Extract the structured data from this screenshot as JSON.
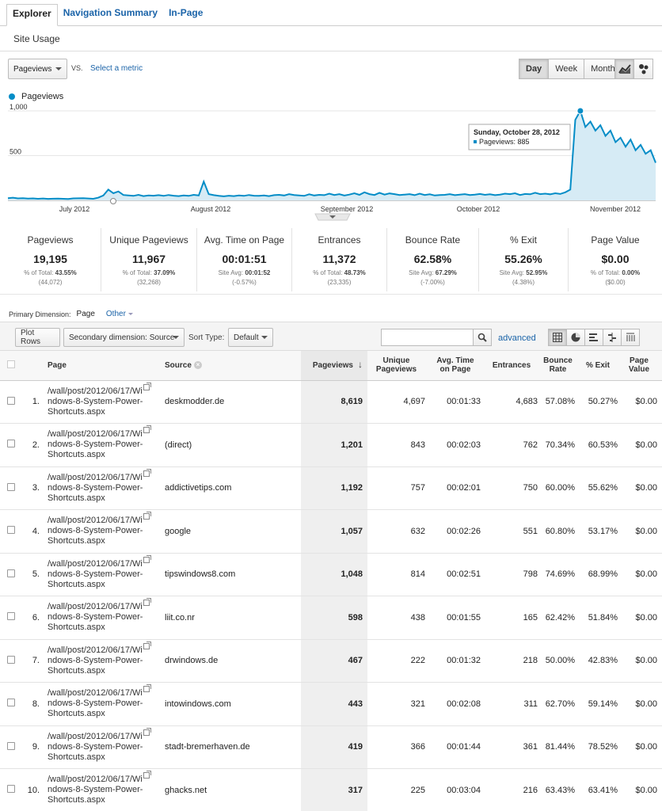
{
  "tabs": [
    {
      "label": "Explorer",
      "active": true
    },
    {
      "label": "Navigation Summary",
      "active": false
    },
    {
      "label": "In-Page",
      "active": false
    }
  ],
  "subtab": "Site Usage",
  "metric_select": {
    "value": "Pageviews",
    "vs_label": "VS.",
    "select_metric": "Select a metric"
  },
  "date_buttons": [
    {
      "label": "Day",
      "active": true
    },
    {
      "label": "Week",
      "active": false
    },
    {
      "label": "Month",
      "active": false
    }
  ],
  "chart_type_icons": [
    "line-chart-icon",
    "motion-chart-icon"
  ],
  "legend": {
    "label": "Pageviews",
    "color": "#058dc7"
  },
  "chart_data": {
    "type": "area",
    "series": [
      {
        "name": "Pageviews",
        "values": [
          25,
          30,
          22,
          24,
          20,
          22,
          18,
          21,
          17,
          19,
          20,
          18,
          16,
          22,
          23,
          25,
          21,
          18,
          30,
          55,
          120,
          80,
          100,
          60,
          55,
          50,
          62,
          48,
          55,
          52,
          58,
          50,
          60,
          52,
          48,
          55,
          50,
          62,
          55,
          210,
          70,
          58,
          50,
          45,
          52,
          48,
          55,
          50,
          60,
          52,
          50,
          55,
          48,
          58,
          62,
          55,
          70,
          60,
          55,
          50,
          68,
          55,
          62,
          58,
          75,
          60,
          70,
          55,
          65,
          80,
          62,
          90,
          70,
          60,
          85,
          65,
          78,
          70,
          60,
          65,
          70,
          58,
          75,
          60,
          68,
          55,
          60,
          62,
          70,
          58,
          64,
          70,
          60,
          65,
          72,
          62,
          68,
          58,
          65,
          75,
          70,
          80,
          60,
          72,
          68,
          85,
          70,
          75,
          68,
          80,
          72,
          90,
          120,
          900,
          1000,
          820,
          880,
          780,
          840,
          720,
          780,
          650,
          700,
          600,
          680,
          560,
          620,
          520,
          560,
          420
        ]
      }
    ],
    "x_ticks": [
      "July 2012",
      "August 2012",
      "September 2012",
      "October 2012",
      "November 2012"
    ],
    "y_ticks": [
      "1,000",
      "500"
    ],
    "ylim": [
      0,
      1000
    ],
    "tooltip": {
      "title": "Sunday, October 28, 2012",
      "text": "Pageviews: 885"
    },
    "color": "#058dc7",
    "fill": "#d6ebf5"
  },
  "scorecards": [
    {
      "label": "Pageviews",
      "value": "19,195",
      "sub_prefix": "% of Total:",
      "sub_value": "43.55%",
      "sub2": "(44,072)"
    },
    {
      "label": "Unique Pageviews",
      "value": "11,967",
      "sub_prefix": "% of Total:",
      "sub_value": "37.09%",
      "sub2": "(32,268)"
    },
    {
      "label": "Avg. Time on Page",
      "value": "00:01:51",
      "sub_prefix": "Site Avg:",
      "sub_value": "00:01:52",
      "sub2": "(-0.57%)"
    },
    {
      "label": "Entrances",
      "value": "11,372",
      "sub_prefix": "% of Total:",
      "sub_value": "48.73%",
      "sub2": "(23,335)"
    },
    {
      "label": "Bounce Rate",
      "value": "62.58%",
      "sub_prefix": "Site Avg:",
      "sub_value": "67.29%",
      "sub2": "(-7.00%)"
    },
    {
      "label": "% Exit",
      "value": "55.26%",
      "sub_prefix": "Site Avg:",
      "sub_value": "52.95%",
      "sub2": "(4.38%)"
    },
    {
      "label": "Page Value",
      "value": "$0.00",
      "sub_prefix": "% of Total:",
      "sub_value": "0.00%",
      "sub2": "($0.00)"
    }
  ],
  "primary_dimension": {
    "label": "Primary Dimension:",
    "value": "Page",
    "other": "Other"
  },
  "toolbar": {
    "plot_rows": "Plot Rows",
    "secondary_dimension": "Secondary dimension: Source",
    "sort_type_label": "Sort Type:",
    "sort_type_value": "Default",
    "advanced": "advanced"
  },
  "table": {
    "headers": {
      "page": "Page",
      "source": "Source",
      "pageviews": "Pageviews",
      "unique_pageviews_1": "Unique",
      "unique_pageviews_2": "Pageviews",
      "avg_time_1": "Avg. Time",
      "avg_time_2": "on Page",
      "entrances": "Entrances",
      "bounce_1": "Bounce",
      "bounce_2": "Rate",
      "exit": "% Exit",
      "value_1": "Page",
      "value_2": "Value"
    },
    "page_lines": [
      "/wall/post/2012/06/17/Wi",
      "ndows-8-System-Power-",
      "Shortcuts.aspx"
    ],
    "rows": [
      {
        "idx": "1.",
        "source": "deskmodder.de",
        "pv": "8,619",
        "upv": "4,697",
        "avg": "00:01:33",
        "ent": "4,683",
        "br": "57.08%",
        "exit": "50.27%",
        "val": "$0.00"
      },
      {
        "idx": "2.",
        "source": "(direct)",
        "pv": "1,201",
        "upv": "843",
        "avg": "00:02:03",
        "ent": "762",
        "br": "70.34%",
        "exit": "60.53%",
        "val": "$0.00"
      },
      {
        "idx": "3.",
        "source": "addictivetips.com",
        "pv": "1,192",
        "upv": "757",
        "avg": "00:02:01",
        "ent": "750",
        "br": "60.00%",
        "exit": "55.62%",
        "val": "$0.00"
      },
      {
        "idx": "4.",
        "source": "google",
        "pv": "1,057",
        "upv": "632",
        "avg": "00:02:26",
        "ent": "551",
        "br": "60.80%",
        "exit": "53.17%",
        "val": "$0.00"
      },
      {
        "idx": "5.",
        "source": "tipswindows8.com",
        "pv": "1,048",
        "upv": "814",
        "avg": "00:02:51",
        "ent": "798",
        "br": "74.69%",
        "exit": "68.99%",
        "val": "$0.00"
      },
      {
        "idx": "6.",
        "source": "liit.co.nr",
        "pv": "598",
        "upv": "438",
        "avg": "00:01:55",
        "ent": "165",
        "br": "62.42%",
        "exit": "51.84%",
        "val": "$0.00"
      },
      {
        "idx": "7.",
        "source": "drwindows.de",
        "pv": "467",
        "upv": "222",
        "avg": "00:01:32",
        "ent": "218",
        "br": "50.00%",
        "exit": "42.83%",
        "val": "$0.00"
      },
      {
        "idx": "8.",
        "source": "intowindows.com",
        "pv": "443",
        "upv": "321",
        "avg": "00:02:08",
        "ent": "311",
        "br": "62.70%",
        "exit": "59.14%",
        "val": "$0.00"
      },
      {
        "idx": "9.",
        "source": "stadt-bremerhaven.de",
        "pv": "419",
        "upv": "366",
        "avg": "00:01:44",
        "ent": "361",
        "br": "81.44%",
        "exit": "78.52%",
        "val": "$0.00"
      },
      {
        "idx": "10.",
        "source": "ghacks.net",
        "pv": "317",
        "upv": "225",
        "avg": "00:03:04",
        "ent": "216",
        "br": "63.43%",
        "exit": "63.41%",
        "val": "$0.00"
      }
    ]
  }
}
